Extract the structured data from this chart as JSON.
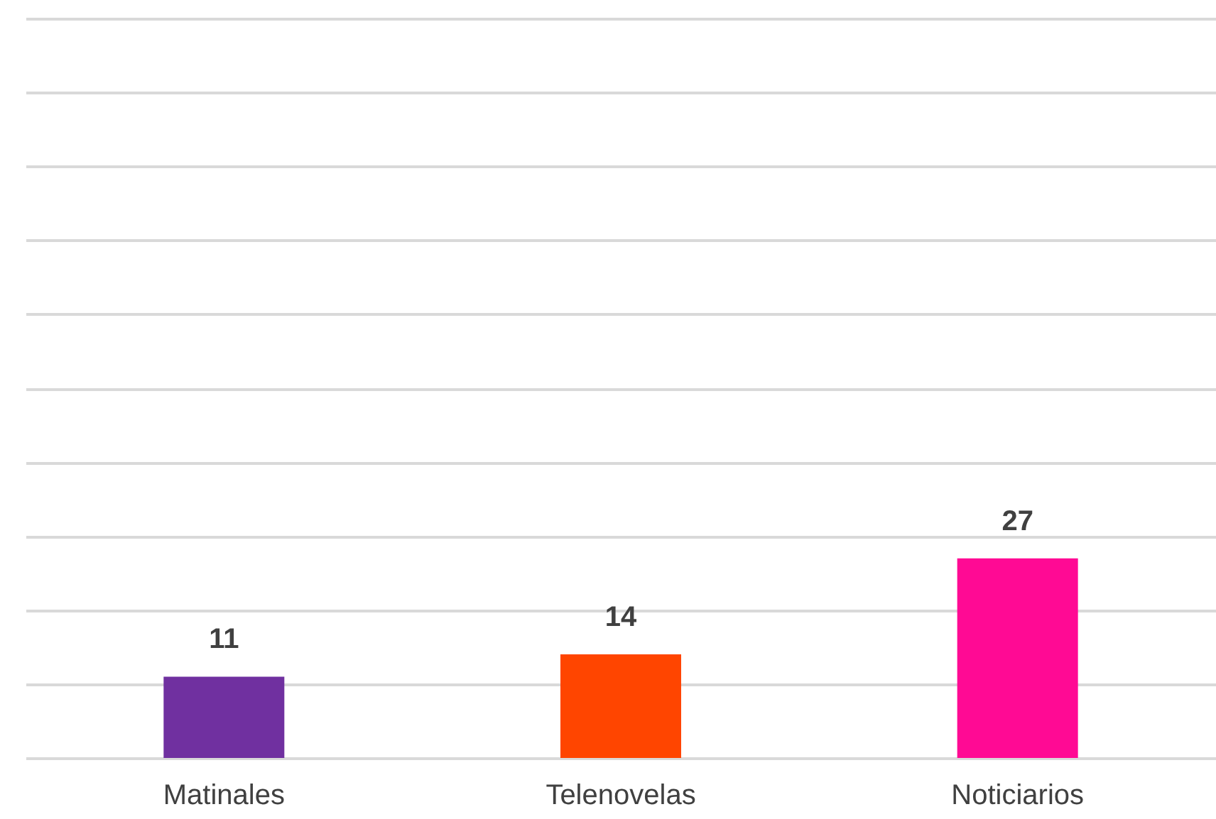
{
  "chart_data": {
    "type": "bar",
    "categories": [
      "Matinales",
      "Telenovelas",
      "Noticiarios"
    ],
    "values": [
      11,
      14,
      27
    ],
    "colors": [
      "#7030a0",
      "#ff4500",
      "#ff0a94"
    ],
    "ylim": [
      0,
      100
    ],
    "yticks": [
      {
        "value": 0,
        "label": null
      },
      {
        "value": 10,
        "label": null
      },
      {
        "value": 20,
        "label": null
      },
      {
        "value": 30,
        "label": null
      },
      {
        "value": 40,
        "label": null
      },
      {
        "value": 50,
        "label": null
      },
      {
        "value": 60,
        "label": null
      },
      {
        "value": 70,
        "label": null
      },
      {
        "value": 80,
        "label": null
      },
      {
        "value": 90,
        "label": null
      },
      {
        "value": 100,
        "label": null
      }
    ],
    "grid": "y",
    "tick_labels": "x",
    "data_labels": true
  }
}
